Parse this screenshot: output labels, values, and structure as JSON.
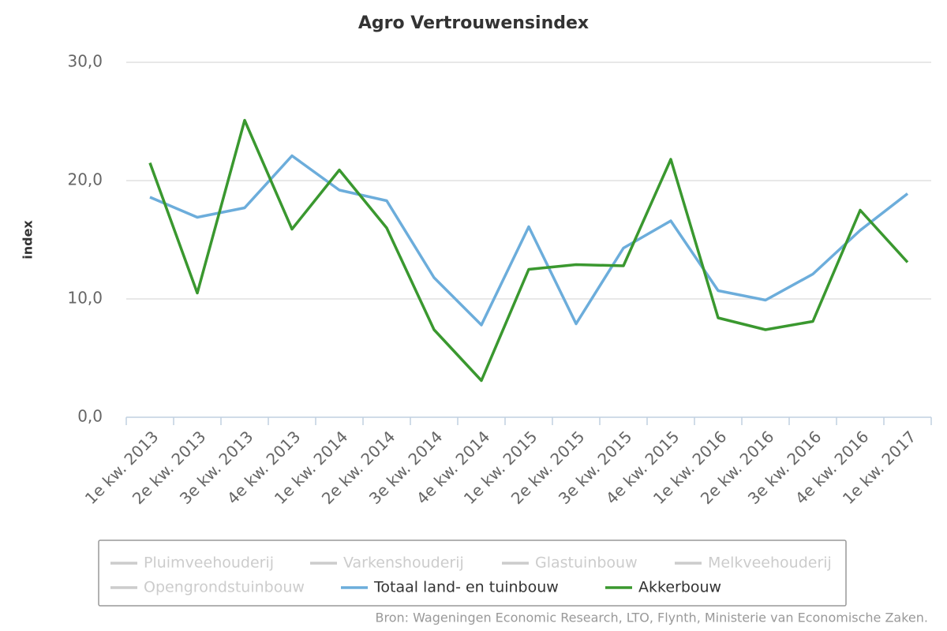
{
  "chart_data": {
    "type": "line",
    "title": "Agro Vertrouwensindex",
    "y_label": "index",
    "categories": [
      "1e kw. 2013",
      "2e kw. 2013",
      "3e kw. 2013",
      "4e kw. 2013",
      "1e kw. 2014",
      "2e kw. 2014",
      "3e kw. 2014",
      "4e kw. 2014",
      "1e kw. 2015",
      "2e kw. 2015",
      "3e kw. 2015",
      "4e kw. 2015",
      "1e kw. 2016",
      "2e kw. 2016",
      "3e kw. 2016",
      "4e kw. 2016",
      "1e kw. 2017"
    ],
    "series": [
      {
        "name": "Pluimveehouderij",
        "color": "#cccccc",
        "visible": false
      },
      {
        "name": "Varkenshouderij",
        "color": "#cccccc",
        "visible": false
      },
      {
        "name": "Glastuinbouw",
        "color": "#cccccc",
        "visible": false
      },
      {
        "name": "Melkveehouderij",
        "color": "#cccccc",
        "visible": false
      },
      {
        "name": "Opengrondstuinbouw",
        "color": "#cccccc",
        "visible": false
      },
      {
        "name": "Totaal land- en tuinbouw",
        "color": "#6caddb",
        "visible": true,
        "values": [
          18.6,
          16.9,
          17.7,
          22.1,
          19.2,
          18.3,
          11.8,
          7.8,
          16.1,
          7.9,
          14.3,
          16.6,
          10.7,
          9.9,
          12.1,
          15.8,
          18.9
        ]
      },
      {
        "name": "Akkerbouw",
        "color": "#3a982f",
        "visible": true,
        "values": [
          21.5,
          10.5,
          25.1,
          15.9,
          20.9,
          16.0,
          7.4,
          3.1,
          12.5,
          12.9,
          12.8,
          21.8,
          8.4,
          7.4,
          8.1,
          17.5,
          13.1
        ]
      }
    ],
    "ylim": [
      0,
      30
    ],
    "yticks": [
      {
        "value": 0,
        "label": "0,0"
      },
      {
        "value": 10,
        "label": "10,0"
      },
      {
        "value": 20,
        "label": "20,0"
      },
      {
        "value": 30,
        "label": "30,0"
      }
    ],
    "grid": true,
    "legend": "bottom",
    "source": "Bron: Wageningen Economic Research, LTO, Flynth, Ministerie van Economische Zaken."
  }
}
